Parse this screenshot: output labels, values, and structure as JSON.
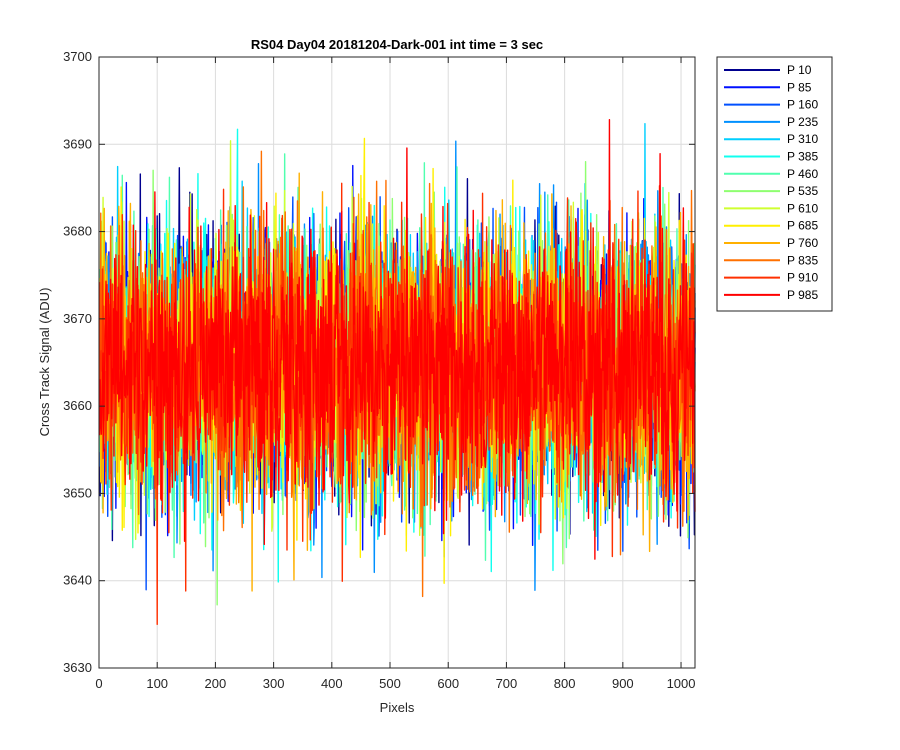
{
  "chart_data": {
    "type": "line",
    "title": "RS04 Day04 20181204-Dark-001 int time = 3 sec",
    "xlabel": "Pixels",
    "ylabel": "Cross Track Signal (ADU)",
    "xlim": [
      0,
      1024
    ],
    "ylim": [
      3630,
      3700
    ],
    "xticks": [
      0,
      100,
      200,
      300,
      400,
      500,
      600,
      700,
      800,
      900,
      1000
    ],
    "yticks": [
      3630,
      3640,
      3650,
      3660,
      3670,
      3680,
      3690,
      3700
    ],
    "grid": true,
    "legend_position": "outside-top-right",
    "noise": {
      "points_per_series": 1024,
      "mean": 3664.5,
      "std": 7.5,
      "min": 3635,
      "max": 3693
    },
    "series": [
      {
        "name": "P 10",
        "color": "#00008f"
      },
      {
        "name": "P 85",
        "color": "#0010ff"
      },
      {
        "name": "P 160",
        "color": "#0050ff"
      },
      {
        "name": "P 235",
        "color": "#0090ff"
      },
      {
        "name": "P 310",
        "color": "#00cfff"
      },
      {
        "name": "P 385",
        "color": "#10ffef"
      },
      {
        "name": "P 460",
        "color": "#50ffaf"
      },
      {
        "name": "P 535",
        "color": "#8fff70"
      },
      {
        "name": "P 610",
        "color": "#cfff30"
      },
      {
        "name": "P 685",
        "color": "#ffef00"
      },
      {
        "name": "P 760",
        "color": "#ffb000"
      },
      {
        "name": "P 835",
        "color": "#ff7000"
      },
      {
        "name": "P 910",
        "color": "#ff3000"
      },
      {
        "name": "P 985",
        "color": "#ff0000"
      }
    ]
  }
}
